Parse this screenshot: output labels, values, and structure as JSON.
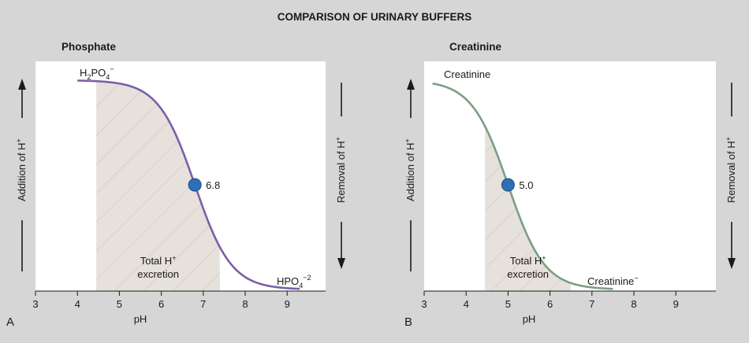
{
  "figure_title": "COMPARISON OF URINARY BUFFERS",
  "colors": {
    "background": "#d5d6d5",
    "plot_area": "#ffffff",
    "shade": "#e6e1db",
    "hatch": "#cfc7be",
    "phosphate_curve": "#7c5fa6",
    "creatinine_curve": "#7b9e84",
    "point": "#2f6fb5",
    "axis": "#1a1a1a"
  },
  "chart_data": [
    {
      "type": "line",
      "panel_letter": "A",
      "title": "Phosphate",
      "xlabel": "pH",
      "ylabel_left": "Addition of H+",
      "ylabel_right": "Removal of H+",
      "xlim": [
        3,
        10
      ],
      "ylim": [
        0,
        1
      ],
      "x_ticks": [
        3,
        4,
        5,
        6,
        7,
        8,
        9
      ],
      "x_tick_labels": [
        "3",
        "4",
        "5",
        "6",
        "7",
        "8",
        "9"
      ],
      "pKa": 6.8,
      "pKa_label": "6.8",
      "curve_x_range": [
        4.0,
        9.3
      ],
      "shaded_x_range": [
        4.45,
        7.4
      ],
      "shaded_label": [
        "Total H+",
        "excretion"
      ],
      "acid_form_label": "H2PO4−",
      "base_form_label": "HPO4−2",
      "curve_color": "#7c5fa6"
    },
    {
      "type": "line",
      "panel_letter": "B",
      "title": "Creatinine",
      "xlabel": "pH",
      "ylabel_left": "Addition of H+",
      "ylabel_right": "Removal of H+",
      "xlim": [
        3,
        10
      ],
      "ylim": [
        0,
        1
      ],
      "x_ticks": [
        3,
        4,
        5,
        6,
        7,
        8,
        9
      ],
      "x_tick_labels": [
        "3",
        "4",
        "5",
        "6",
        "7",
        "8",
        "9"
      ],
      "pKa": 5.0,
      "pKa_label": "5.0",
      "curve_x_range": [
        3.2,
        7.5
      ],
      "shaded_x_range": [
        4.45,
        6.5
      ],
      "shaded_label": [
        "Total H+",
        "excretion"
      ],
      "acid_form_label": "Creatinine",
      "base_form_label": "Creatinine−",
      "curve_color": "#7b9e84"
    }
  ]
}
